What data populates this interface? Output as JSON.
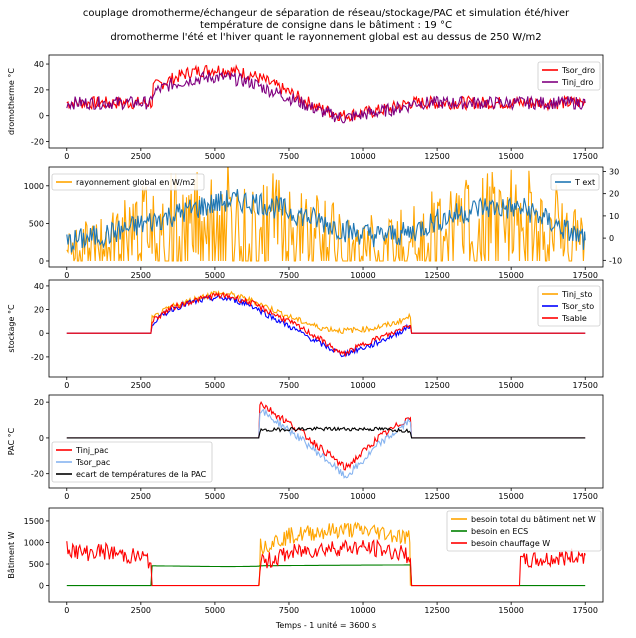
{
  "figure": {
    "title_lines": [
      "couplage dromotherme/échangeur de séparation de réseau/stockage/PAC et simulation été/hiver",
      "température de consigne dans le bâtiment : 19 °C",
      "dromotherme l'été et l'hiver quant le rayonnement global est au dessus de 250 W/m2"
    ],
    "xlabel": "Temps - 1 unité = 3600 s"
  },
  "chart_data": [
    {
      "type": "line",
      "ylabel": "dromotherme °C",
      "xlim": [
        -600,
        18100
      ],
      "ylim": [
        -25,
        47
      ],
      "xticks": [
        0,
        2500,
        5000,
        7500,
        10000,
        12500,
        15000,
        17500
      ],
      "yticks": [
        -20,
        0,
        20,
        40
      ],
      "grid": false,
      "legend_position": "top-right",
      "series": [
        {
          "name": "Tsor_dro",
          "color": "#ff0000",
          "x": [
            0,
            2900,
            2900,
            3500,
            4200,
            5000,
            5500,
            6200,
            6600,
            7500,
            8500,
            9300,
            10300,
            11000,
            11600,
            11600,
            17500
          ],
          "y": [
            10,
            10,
            22,
            28,
            34,
            36,
            35,
            32,
            28,
            18,
            6,
            0,
            3,
            6,
            10,
            10,
            10
          ]
        },
        {
          "name": "Tinj_dro",
          "color": "#800080",
          "x": [
            0,
            2900,
            2900,
            3500,
            4200,
            5000,
            5500,
            6200,
            6600,
            7500,
            8500,
            9300,
            10300,
            11000,
            11600,
            11600,
            17500
          ],
          "y": [
            10,
            10,
            18,
            24,
            28,
            30,
            29,
            26,
            22,
            14,
            4,
            -2,
            2,
            5,
            8,
            10,
            10
          ]
        }
      ]
    },
    {
      "type": "line",
      "ylabel": "",
      "xlim": [
        -600,
        18100
      ],
      "ylim": [
        -80,
        1250
      ],
      "ylim_right": [
        -13,
        32
      ],
      "xticks": [
        0,
        2500,
        5000,
        7500,
        10000,
        12500,
        15000,
        17500
      ],
      "yticks": [
        0,
        500,
        1000
      ],
      "yticks_right": [
        -10,
        0,
        10,
        20,
        30
      ],
      "grid": false,
      "legend_position": "top-left and top-right",
      "series": [
        {
          "name": "rayonnement global en W/m2",
          "color": "#ffa500",
          "axis": "left",
          "x": [
            0,
            1500,
            3000,
            4500,
            5500,
            6500,
            7500,
            8500,
            9500,
            10500,
            11500,
            12500,
            14000,
            15500,
            16500,
            17500
          ],
          "y": [
            250,
            500,
            750,
            850,
            900,
            850,
            800,
            600,
            450,
            400,
            500,
            650,
            800,
            850,
            700,
            350
          ]
        },
        {
          "name": "T ext",
          "color": "#1f77b4",
          "axis": "right",
          "x": [
            0,
            1500,
            3000,
            4500,
            5500,
            6500,
            7500,
            8500,
            9500,
            10500,
            11500,
            12500,
            14000,
            15500,
            16500,
            17500
          ],
          "y": [
            -2,
            2,
            8,
            14,
            17,
            16,
            12,
            8,
            3,
            1,
            2,
            8,
            14,
            13,
            6,
            -1
          ]
        }
      ]
    },
    {
      "type": "line",
      "ylabel": "stockage °C",
      "xlim": [
        -600,
        18100
      ],
      "ylim": [
        -37,
        45
      ],
      "xticks": [
        0,
        2500,
        5000,
        7500,
        10000,
        12500,
        15000,
        17500
      ],
      "yticks": [
        -20,
        0,
        20,
        40
      ],
      "grid": false,
      "legend_position": "top-right",
      "series": [
        {
          "name": "Tinj_sto",
          "color": "#ffa500",
          "x": [
            0,
            2850,
            2850,
            3500,
            4200,
            5000,
            5500,
            6200,
            6600,
            7500,
            8500,
            9300,
            10300,
            11000,
            11600,
            11600,
            17500
          ],
          "y": [
            0,
            0,
            12,
            22,
            28,
            34,
            33,
            28,
            24,
            14,
            5,
            2,
            4,
            8,
            14,
            0,
            0
          ]
        },
        {
          "name": "Tsor_sto",
          "color": "#0000ff",
          "x": [
            0,
            2850,
            2850,
            3500,
            4200,
            5000,
            5500,
            6200,
            6600,
            7500,
            8500,
            9300,
            10300,
            11000,
            11600,
            11600,
            17500
          ],
          "y": [
            0,
            0,
            8,
            20,
            26,
            30,
            29,
            24,
            18,
            6,
            -8,
            -18,
            -10,
            -2,
            6,
            0,
            0
          ]
        },
        {
          "name": "Tsable",
          "color": "#ff0000",
          "x": [
            0,
            2850,
            2850,
            3500,
            4200,
            5000,
            5500,
            6200,
            6600,
            7500,
            8500,
            9300,
            10300,
            11000,
            11600,
            11600,
            17500
          ],
          "y": [
            0,
            0,
            10,
            21,
            27,
            32,
            31,
            26,
            21,
            10,
            -4,
            -18,
            -6,
            0,
            8,
            0,
            0
          ]
        }
      ]
    },
    {
      "type": "line",
      "ylabel": "PAC °C",
      "xlim": [
        -600,
        18100
      ],
      "ylim": [
        -28,
        24
      ],
      "xticks": [
        0,
        2500,
        5000,
        7500,
        10000,
        12500,
        15000,
        17500
      ],
      "yticks": [
        -20,
        0,
        20
      ],
      "grid": false,
      "legend_position": "bottom-left",
      "series": [
        {
          "name": "Tinj_pac",
          "color": "#ff0000",
          "x": [
            0,
            6500,
            6500,
            7000,
            7700,
            8300,
            8900,
            9400,
            10000,
            10500,
            11000,
            11600,
            11600,
            17500
          ],
          "y": [
            0,
            0,
            20,
            14,
            6,
            -2,
            -10,
            -17,
            -8,
            0,
            5,
            12,
            0,
            0
          ]
        },
        {
          "name": "Tsor_pac",
          "color": "#87b4f0",
          "x": [
            0,
            6500,
            6500,
            7000,
            7700,
            8300,
            8900,
            9400,
            10000,
            10500,
            11000,
            11600,
            11600,
            17500
          ],
          "y": [
            0,
            0,
            16,
            10,
            2,
            -6,
            -14,
            -22,
            -13,
            -4,
            2,
            10,
            0,
            0
          ]
        },
        {
          "name": "ecart de températures de la PAC",
          "color": "#000000",
          "x": [
            0,
            6500,
            6500,
            7500,
            9000,
            10500,
            11600,
            11600,
            17500
          ],
          "y": [
            0,
            0,
            4,
            5,
            5,
            5,
            4,
            0,
            0
          ]
        }
      ]
    },
    {
      "type": "line",
      "ylabel": "Bâtiment W",
      "xlim": [
        -600,
        18100
      ],
      "ylim": [
        -380,
        1800
      ],
      "xticks": [
        0,
        2500,
        5000,
        7500,
        10000,
        12500,
        15000,
        17500
      ],
      "yticks": [
        0,
        500,
        1000,
        1500
      ],
      "grid": false,
      "legend_position": "top-right",
      "series": [
        {
          "name": "besoin total du bâtiment net W",
          "color": "#ffa500",
          "x": [
            6500,
            6500,
            7500,
            8500,
            9500,
            10500,
            11600,
            11600
          ],
          "y": [
            0,
            900,
            1150,
            1250,
            1300,
            1250,
            1100,
            0
          ]
        },
        {
          "name": "besoin en ECS",
          "color": "#008000",
          "x": [
            0,
            2850,
            2850,
            4000,
            5500,
            6500,
            6500,
            8500,
            11600,
            11600,
            17500
          ],
          "y": [
            0,
            0,
            460,
            450,
            440,
            450,
            460,
            470,
            480,
            0,
            0
          ]
        },
        {
          "name": "besoin chauffage W",
          "color": "#ff0000",
          "x": [
            0,
            500,
            1200,
            2000,
            2600,
            2850,
            2850,
            6500,
            6500,
            7500,
            8500,
            9500,
            10500,
            11600,
            11600,
            15300,
            15300,
            16200,
            17500
          ],
          "y": [
            900,
            750,
            800,
            700,
            650,
            500,
            0,
            0,
            500,
            750,
            850,
            900,
            850,
            700,
            0,
            0,
            550,
            600,
            700
          ]
        }
      ]
    }
  ]
}
